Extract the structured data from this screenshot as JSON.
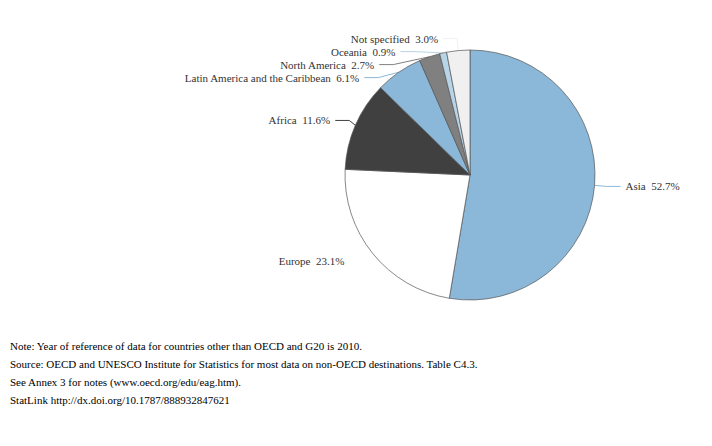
{
  "chart_data": {
    "type": "pie",
    "categories": [
      "Asia",
      "Europe",
      "Africa",
      "Latin America and the Caribbean",
      "North America",
      "Oceania",
      "Not specified"
    ],
    "values": [
      52.7,
      23.1,
      11.6,
      6.1,
      2.7,
      0.9,
      3.0
    ],
    "value_labels": [
      "Asia  52.7%",
      "Europe  23.1%",
      "Africa  11.6%",
      "Latin America and the Caribbean  6.1%",
      "North America  2.7%",
      "Oceania  0.9%",
      "Not specified  3.0%"
    ],
    "colors": [
      "#8BB8D8",
      "#FFFFFF",
      "#404040",
      "#8BB8D8",
      "#808080",
      "#B8D4E8",
      "#F0F0F0"
    ],
    "annotations": [
      "Note: Year of reference of data for countries other than OECD and G20 is 2010.",
      "Source: OECD and UNESCO Institute for Statistics for most data on non-OECD destinations. Table C4.3.",
      "See Annex 3 for notes (www.oecd.org/edu/eag.htm).",
      "StatLink http://dx.doi.org/10.1787/888932847621"
    ]
  }
}
